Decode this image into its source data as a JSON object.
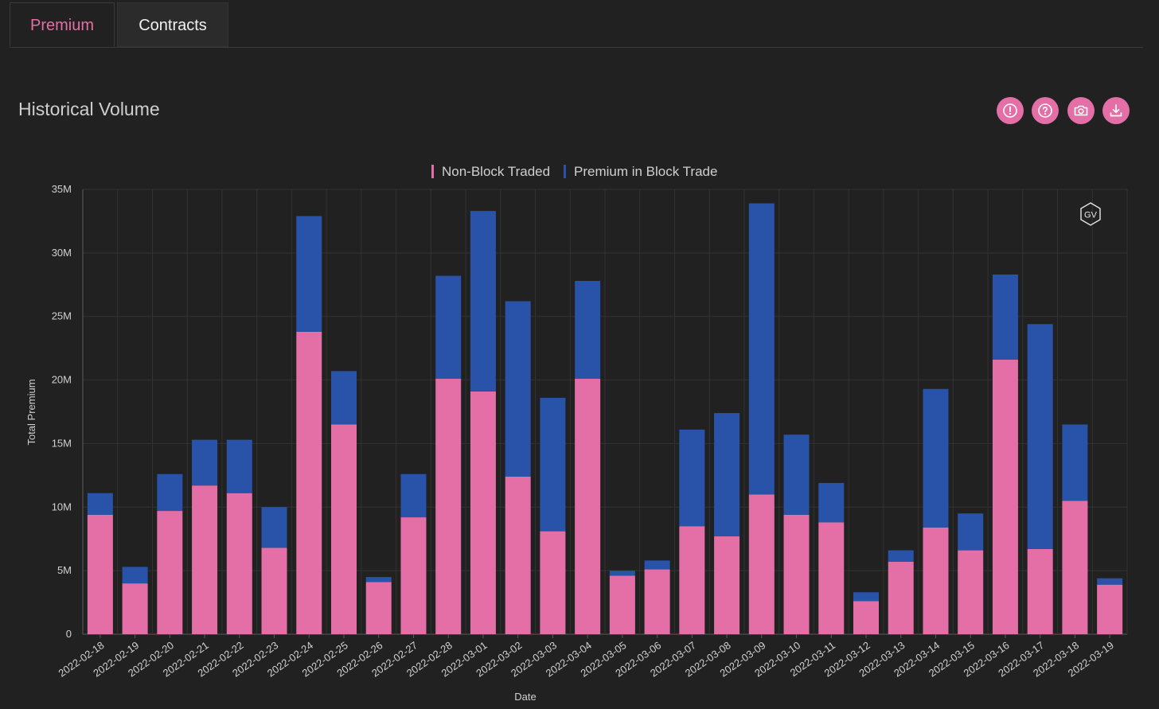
{
  "tabs": [
    {
      "label": "Premium",
      "active": true
    },
    {
      "label": "Contracts",
      "active": false
    }
  ],
  "panel": {
    "title": "Historical Volume",
    "toolbar": [
      {
        "icon": "alert-icon"
      },
      {
        "icon": "help-icon"
      },
      {
        "icon": "camera-icon"
      },
      {
        "icon": "download-icon"
      }
    ]
  },
  "watermark": "GV",
  "colors": {
    "accent": "#e36fa6",
    "non_block": "#e36fa6",
    "block": "#2853a8",
    "background": "#212121"
  },
  "chart_data": {
    "type": "bar",
    "stacked": true,
    "xlabel": "Date",
    "ylabel": "Total Premium",
    "ylim": [
      0,
      35000000
    ],
    "yticks": [
      0,
      5000000,
      10000000,
      15000000,
      20000000,
      25000000,
      30000000,
      35000000
    ],
    "ytick_labels": [
      "0",
      "5M",
      "10M",
      "15M",
      "20M",
      "25M",
      "30M",
      "35M"
    ],
    "legend_position": "top-center",
    "categories": [
      "2022-02-18",
      "2022-02-19",
      "2022-02-20",
      "2022-02-21",
      "2022-02-22",
      "2022-02-23",
      "2022-02-24",
      "2022-02-25",
      "2022-02-26",
      "2022-02-27",
      "2022-02-28",
      "2022-03-01",
      "2022-03-02",
      "2022-03-03",
      "2022-03-04",
      "2022-03-05",
      "2022-03-06",
      "2022-03-07",
      "2022-03-08",
      "2022-03-09",
      "2022-03-10",
      "2022-03-11",
      "2022-03-12",
      "2022-03-13",
      "2022-03-14",
      "2022-03-15",
      "2022-03-16",
      "2022-03-17",
      "2022-03-18",
      "2022-03-19"
    ],
    "series": [
      {
        "name": "Non-Block Traded",
        "color": "#e36fa6",
        "values": [
          9.4,
          4.0,
          9.7,
          11.7,
          11.1,
          6.8,
          23.8,
          16.5,
          4.1,
          9.2,
          20.1,
          19.1,
          12.4,
          8.1,
          20.1,
          4.6,
          5.1,
          8.5,
          7.7,
          11.0,
          9.4,
          8.8,
          2.6,
          5.7,
          8.4,
          6.6,
          21.6,
          6.7,
          10.5,
          3.9
        ],
        "unit": "M"
      },
      {
        "name": "Premium in Block Trade",
        "color": "#2853a8",
        "values": [
          1.7,
          1.3,
          2.9,
          3.6,
          4.2,
          3.2,
          9.1,
          4.2,
          0.4,
          3.4,
          8.1,
          14.2,
          13.8,
          10.5,
          7.7,
          0.4,
          0.7,
          7.6,
          9.7,
          22.9,
          6.3,
          3.1,
          0.7,
          0.9,
          10.9,
          2.9,
          6.7,
          17.7,
          6.0,
          0.5
        ],
        "unit": "M"
      }
    ]
  }
}
